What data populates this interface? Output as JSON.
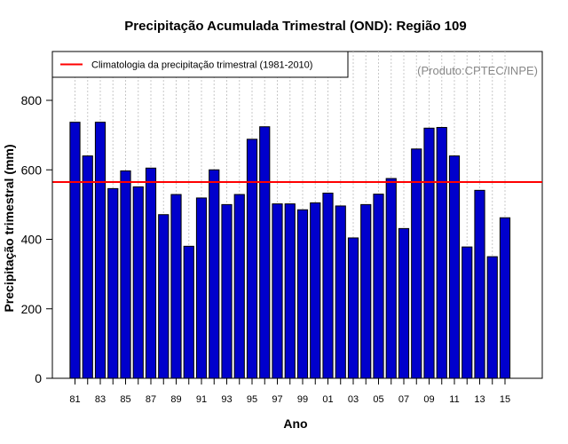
{
  "chart_data": {
    "type": "bar",
    "title": "Precipitação Acumulada Trimestral (OND): Região 109",
    "xlabel": "Ano",
    "ylabel": "Precipitação trimestral (mm)",
    "credit": "(Produto:CPTEC/INPE)",
    "categories": [
      "81",
      "82",
      "83",
      "84",
      "85",
      "86",
      "87",
      "88",
      "89",
      "90",
      "91",
      "92",
      "93",
      "94",
      "95",
      "96",
      "97",
      "98",
      "99",
      "00",
      "01",
      "02",
      "03",
      "04",
      "05",
      "06",
      "07",
      "08",
      "09",
      "10",
      "11",
      "12",
      "13",
      "14",
      "15"
    ],
    "tick_labels": [
      "81",
      "83",
      "85",
      "87",
      "89",
      "91",
      "93",
      "95",
      "97",
      "99",
      "01",
      "03",
      "05",
      "07",
      "09",
      "11",
      "13",
      "15"
    ],
    "series": [
      {
        "name": "Precipitação trimestral",
        "values": [
          737,
          640,
          737,
          546,
          597,
          551,
          605,
          471,
          529,
          380,
          519,
          600,
          500,
          529,
          688,
          724,
          502,
          502,
          485,
          505,
          533,
          496,
          404,
          500,
          530,
          575,
          431,
          660,
          720,
          722,
          640,
          378,
          541,
          350,
          462
        ],
        "color": "#0000cc"
      }
    ],
    "reference_line": {
      "label": "Climatologia da precipitação trimestral (1981-2010)",
      "value": 565,
      "color": "#ff0000"
    },
    "yticks": [
      0,
      200,
      400,
      600,
      800
    ],
    "ylim": [
      0,
      900
    ],
    "grid": "vertical dotted",
    "legend_position": "top-left"
  }
}
